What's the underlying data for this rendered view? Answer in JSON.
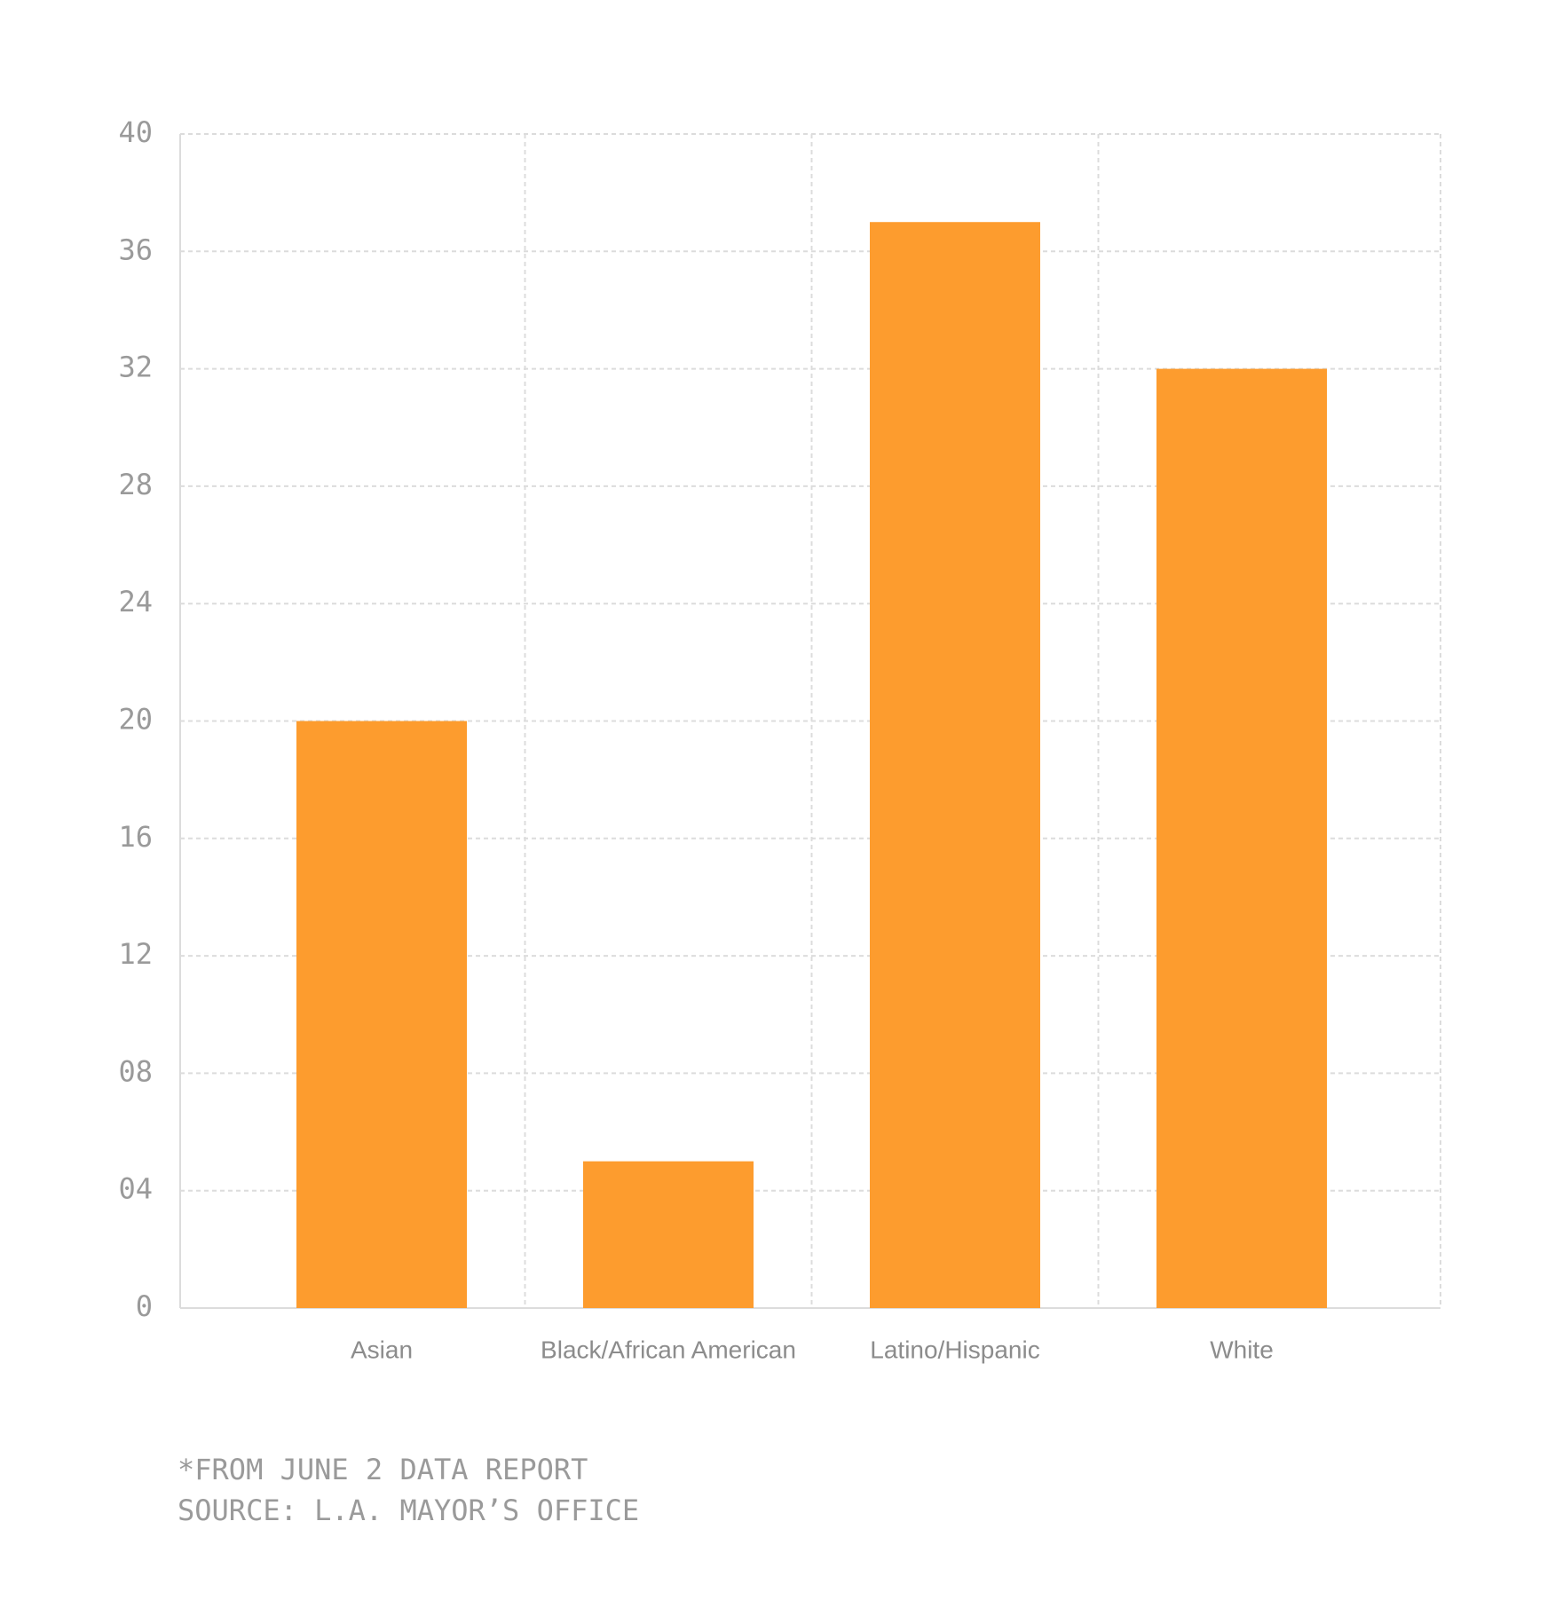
{
  "chart_data": {
    "type": "bar",
    "categories": [
      "Asian",
      "Black/African American",
      "Latino/Hispanic",
      "White"
    ],
    "values": [
      20,
      5,
      37,
      32
    ],
    "color": "#fd9c2e",
    "ylim": [
      0,
      40
    ],
    "yticks": [
      0,
      {
        "value": 4,
        "label": "04"
      },
      {
        "value": 8,
        "label": "08"
      },
      12,
      16,
      20,
      24,
      28,
      32,
      36,
      40
    ],
    "grid": true,
    "notes": [
      "*FROM JUNE 2 DATA REPORT",
      "SOURCE: L.A. MAYOR’S OFFICE"
    ]
  }
}
